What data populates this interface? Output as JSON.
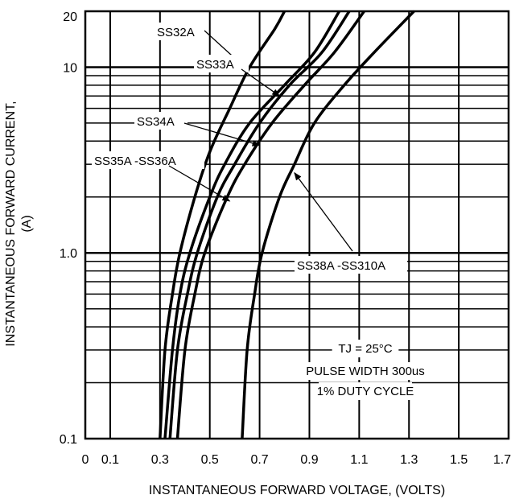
{
  "chart_data": {
    "type": "line",
    "xlabel": "INSTANTANEOUS FORWARD VOLTAGE, (VOLTS)",
    "ylabel_line1": "INSTANTANEOUS FORWARD CURRENT,",
    "ylabel_line2": "(A)",
    "x_scale": "linear",
    "y_scale": "log",
    "xlim": [
      0,
      1.7
    ],
    "ylim": [
      0.1,
      20
    ],
    "grid": true,
    "x_ticks": [
      {
        "value": 0,
        "label": "0"
      },
      {
        "value": 0.1,
        "label": "0.1"
      },
      {
        "value": 0.3,
        "label": "0.3"
      },
      {
        "value": 0.5,
        "label": "0.5"
      },
      {
        "value": 0.7,
        "label": "0.7"
      },
      {
        "value": 0.9,
        "label": "0.9"
      },
      {
        "value": 1.1,
        "label": "1.1"
      },
      {
        "value": 1.3,
        "label": "1.3"
      },
      {
        "value": 1.5,
        "label": "1.5"
      },
      {
        "value": 1.7,
        "label": "1.7"
      }
    ],
    "y_ticks": [
      {
        "value": 0.1,
        "label": "0.1"
      },
      {
        "value": 1.0,
        "label": "1.0"
      },
      {
        "value": 10,
        "label": "10"
      },
      {
        "value": 20,
        "label": "20"
      }
    ],
    "series": [
      {
        "name": "SS32A",
        "points": [
          [
            0.3,
            0.1
          ],
          [
            0.32,
            0.3
          ],
          [
            0.35,
            0.6
          ],
          [
            0.38,
            1.0
          ],
          [
            0.44,
            2.0
          ],
          [
            0.5,
            3.5
          ],
          [
            0.58,
            6.0
          ],
          [
            0.66,
            10.0
          ],
          [
            0.76,
            16.0
          ],
          [
            0.8,
            20.0
          ]
        ]
      },
      {
        "name": "SS33A",
        "points": [
          [
            0.32,
            0.1
          ],
          [
            0.35,
            0.3
          ],
          [
            0.38,
            0.6
          ],
          [
            0.42,
            1.0
          ],
          [
            0.5,
            2.0
          ],
          [
            0.56,
            3.0
          ],
          [
            0.66,
            5.0
          ],
          [
            0.8,
            8.0
          ],
          [
            0.92,
            12.0
          ],
          [
            1.02,
            20.0
          ]
        ]
      },
      {
        "name": "SS34A",
        "points": [
          [
            0.34,
            0.1
          ],
          [
            0.37,
            0.3
          ],
          [
            0.41,
            0.6
          ],
          [
            0.45,
            1.0
          ],
          [
            0.53,
            2.0
          ],
          [
            0.6,
            3.0
          ],
          [
            0.7,
            5.0
          ],
          [
            0.82,
            8.0
          ],
          [
            0.95,
            12.0
          ],
          [
            1.06,
            20.0
          ]
        ]
      },
      {
        "name": "SS35A -SS36A",
        "points": [
          [
            0.37,
            0.1
          ],
          [
            0.4,
            0.3
          ],
          [
            0.44,
            0.6
          ],
          [
            0.48,
            1.0
          ],
          [
            0.57,
            2.0
          ],
          [
            0.64,
            3.0
          ],
          [
            0.75,
            5.0
          ],
          [
            0.88,
            8.0
          ],
          [
            1.0,
            12.0
          ],
          [
            1.12,
            20.0
          ]
        ]
      },
      {
        "name": "SS38A -SS310A",
        "points": [
          [
            0.63,
            0.1
          ],
          [
            0.65,
            0.3
          ],
          [
            0.68,
            0.6
          ],
          [
            0.71,
            1.0
          ],
          [
            0.78,
            2.0
          ],
          [
            0.84,
            3.0
          ],
          [
            0.92,
            5.0
          ],
          [
            1.04,
            8.0
          ],
          [
            1.16,
            12.0
          ],
          [
            1.32,
            20.0
          ]
        ]
      }
    ],
    "annotations": [
      {
        "id": "ss32a",
        "text": "SS32A",
        "series": "SS32A",
        "arrow_to": [
          0.64,
          10.0
        ]
      },
      {
        "id": "ss33a",
        "text": "SS33A",
        "series": "SS33A",
        "arrow_to": [
          0.78,
          7.0
        ]
      },
      {
        "id": "ss34a",
        "text": "SS34A",
        "series": "SS34A",
        "arrow_to": [
          0.7,
          3.8
        ]
      },
      {
        "id": "ss35a",
        "text": "SS35A -SS36A",
        "series": "SS35A -SS36A",
        "arrow_to": [
          0.58,
          1.9
        ]
      },
      {
        "id": "ss38a",
        "text": "SS38A -SS310A",
        "series": "SS38A -SS310A",
        "arrow_to": [
          0.84,
          2.7
        ]
      }
    ],
    "notes": [
      "TJ = 25°C",
      "PULSE WIDTH 300us",
      "1% DUTY CYCLE"
    ]
  }
}
